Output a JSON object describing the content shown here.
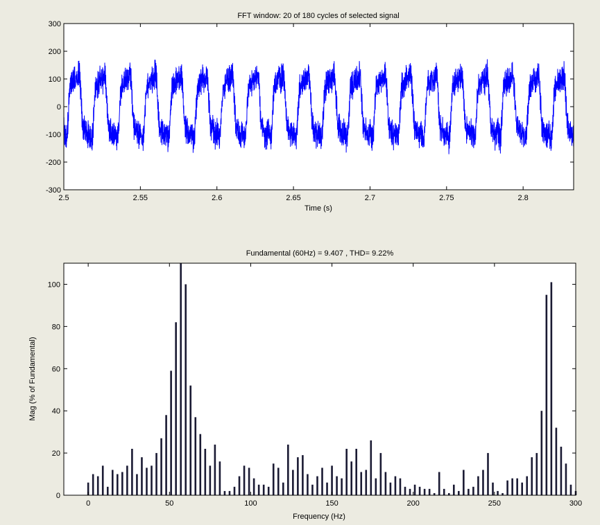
{
  "chart_data": [
    {
      "type": "line",
      "title": "FFT window: 20 of 180 cycles of selected signal",
      "xlabel": "Time (s)",
      "ylabel": "",
      "xlim": [
        2.5,
        2.833
      ],
      "ylim": [
        -300,
        300
      ],
      "xticks": [
        2.5,
        2.55,
        2.6,
        2.65,
        2.7,
        2.75,
        2.8
      ],
      "xtick_labels": [
        "2.5",
        "2.55",
        "2.6",
        "2.65",
        "2.7",
        "2.75",
        "2.8"
      ],
      "yticks": [
        -300,
        -200,
        -100,
        0,
        100,
        200,
        300
      ],
      "ytick_labels": [
        "-300",
        "-200",
        "-100",
        "0",
        "100",
        "200",
        "300"
      ],
      "grid": false,
      "signal": {
        "color": "#0000ff",
        "fundamental_hz": 60,
        "cycles": 20,
        "peak_positive": 215,
        "peak_negative": -210,
        "ripple_amplitude": 30
      }
    },
    {
      "type": "bar",
      "title": "Fundamental (60Hz) = 9.407 , THD= 9.22%",
      "xlabel": "Frequency (Hz)",
      "ylabel": "Mag (% of Fundamental)",
      "xlim": [
        -15,
        300
      ],
      "ylim": [
        0,
        110
      ],
      "xticks": [
        0,
        50,
        100,
        150,
        200,
        250,
        300
      ],
      "xtick_labels": [
        "0",
        "50",
        "100",
        "150",
        "200",
        "250",
        "300"
      ],
      "yticks": [
        0,
        20,
        40,
        60,
        80,
        100
      ],
      "ytick_labels": [
        "0",
        "20",
        "40",
        "60",
        "80",
        "100"
      ],
      "grid": false,
      "bar_color": "#1a1a33",
      "bin_hz": 3,
      "x": [
        0,
        3,
        6,
        9,
        12,
        15,
        18,
        21,
        24,
        27,
        30,
        33,
        36,
        39,
        42,
        45,
        48,
        51,
        54,
        57,
        60,
        63,
        66,
        69,
        72,
        75,
        78,
        81,
        84,
        87,
        90,
        93,
        96,
        99,
        102,
        105,
        108,
        111,
        114,
        117,
        120,
        123,
        126,
        129,
        132,
        135,
        138,
        141,
        144,
        147,
        150,
        153,
        156,
        159,
        162,
        165,
        168,
        171,
        174,
        177,
        180,
        183,
        186,
        189,
        192,
        195,
        198,
        201,
        204,
        207,
        210,
        213,
        216,
        219,
        222,
        225,
        228,
        231,
        234,
        237,
        240,
        243,
        246,
        249,
        252,
        255,
        258,
        261,
        264,
        267,
        270,
        273,
        276,
        279,
        282,
        285,
        288,
        291,
        294,
        297,
        300
      ],
      "values": [
        6,
        10,
        9,
        14,
        4,
        12,
        10,
        11,
        14,
        22,
        10,
        18,
        13,
        14,
        20,
        27,
        38,
        59,
        82,
        110,
        100,
        52,
        37,
        29,
        22,
        14,
        24,
        16,
        2,
        2,
        4,
        9,
        14,
        13,
        8,
        5,
        5,
        4,
        15,
        13,
        6,
        24,
        12,
        18,
        19,
        10,
        5,
        9,
        13,
        6,
        14,
        9,
        8,
        22,
        16,
        22,
        11,
        12,
        26,
        8,
        20,
        11,
        6,
        9,
        8,
        4,
        3,
        5,
        4,
        3,
        3,
        1,
        11,
        3,
        1,
        5,
        2,
        12,
        3,
        4,
        9,
        12,
        20,
        6,
        2,
        1,
        7,
        8,
        8,
        6,
        9,
        18,
        20,
        40,
        95,
        101,
        32,
        23,
        15,
        5,
        2
      ]
    }
  ]
}
